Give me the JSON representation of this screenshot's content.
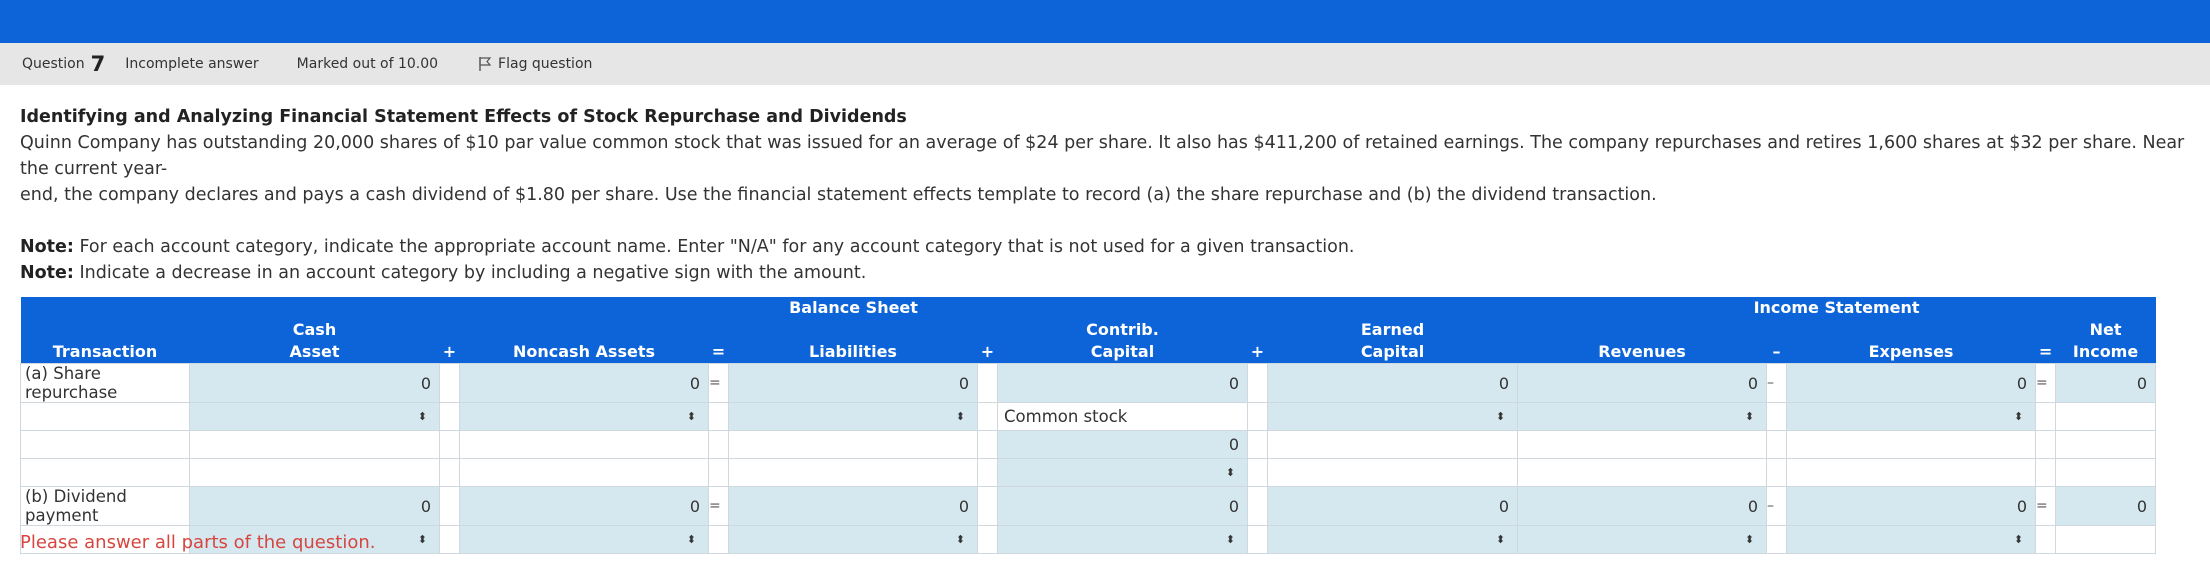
{
  "question": {
    "label": "Question",
    "number": "7",
    "status": "Incomplete answer",
    "marks": "Marked out of 10.00",
    "flag_label": "Flag question"
  },
  "problem": {
    "title": "Identifying and Analyzing Financial Statement Effects of Stock Repurchase and Dividends",
    "body_line1": "Quinn Company has outstanding 20,000 shares of $10 par value common stock that was issued for an average of $24 per share. It also has $411,200 of retained earnings. The company repurchases and retires 1,600 shares at $32 per share. Near the current year-",
    "body_line2": "end, the company declares and pays a cash dividend of $1.80 per share. Use the financial statement effects template to record (a) the share repurchase and (b) the dividend transaction.",
    "note1_label": "Note:",
    "note1_text": " For each account category, indicate the appropriate account name. Enter \"N/A\" for any account category that is not used for a given transaction.",
    "note2_label": "Note:",
    "note2_text": " Indicate a decrease in an account category by including a negative sign with the amount."
  },
  "table": {
    "group_balance_sheet": "Balance Sheet",
    "group_income_statement": "Income Statement",
    "col_transaction": "Transaction",
    "col_cash_line1": "Cash",
    "col_cash_line2": "Asset",
    "col_noncash": "Noncash Assets",
    "col_liabilities": "Liabilities",
    "col_contrib_line1": "Contrib.",
    "col_contrib_line2": "Capital",
    "col_earned_line1": "Earned",
    "col_earned_line2": "Capital",
    "col_revenues": "Revenues",
    "col_expenses": "Expenses",
    "col_netincome_line1": "Net",
    "col_netincome_line2": "Income",
    "op_plus": "+",
    "op_equals": "=",
    "op_minus": "–",
    "tx_a": "(a) Share repurchase",
    "tx_b": "(b) Dividend payment",
    "zero": "0",
    "common_stock": "Common stock",
    "spinner": "⬍"
  },
  "warning": "Please answer all parts of the question."
}
